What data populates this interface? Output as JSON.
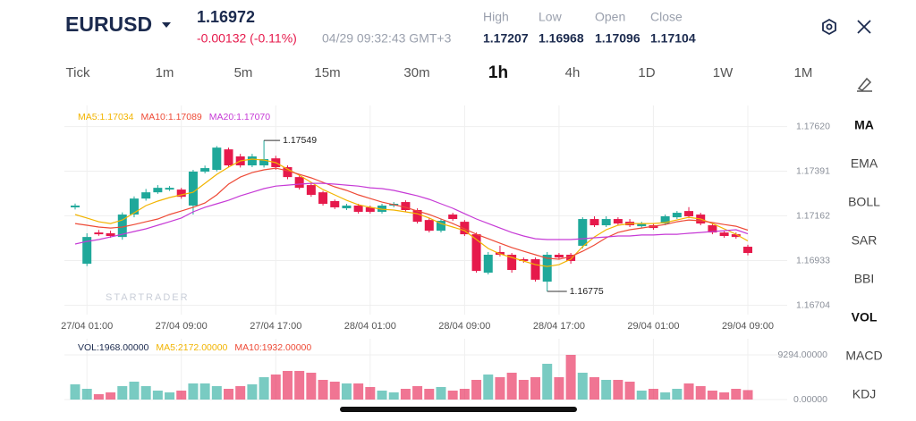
{
  "header": {
    "symbol": "EURUSD",
    "price": "1.16972",
    "change": "-0.00132 (-0.11%)",
    "time": "04/29 09:32:43 GMT+3",
    "stats": [
      {
        "label": "High",
        "value": "1.17207"
      },
      {
        "label": "Low",
        "value": "1.16968"
      },
      {
        "label": "Open",
        "value": "1.17096"
      },
      {
        "label": "Close",
        "value": "1.17104"
      }
    ]
  },
  "timeframes": [
    {
      "label": "Tick"
    },
    {
      "label": "1m"
    },
    {
      "label": "5m"
    },
    {
      "label": "15m"
    },
    {
      "label": "30m"
    },
    {
      "label": "1h",
      "active": true
    },
    {
      "label": "4h"
    },
    {
      "label": "1D"
    },
    {
      "label": "1W"
    },
    {
      "label": "1M"
    }
  ],
  "indicators": [
    {
      "label": "MA",
      "active": true
    },
    {
      "label": "EMA"
    },
    {
      "label": "BOLL"
    },
    {
      "label": "SAR"
    },
    {
      "label": "BBI"
    },
    {
      "label": "VOL",
      "active": true
    },
    {
      "label": "MACD"
    },
    {
      "label": "KDJ"
    }
  ],
  "chart_data": {
    "type": "candlestick",
    "categories": [
      null,
      "27/04 01:00",
      null,
      null,
      null,
      null,
      null,
      null,
      null,
      "27/04 09:00",
      null,
      null,
      null,
      null,
      null,
      null,
      null,
      "27/04 17:00",
      null,
      null,
      null,
      null,
      null,
      null,
      null,
      "28/04 01:00",
      null,
      null,
      null,
      null,
      null,
      null,
      null,
      "28/04 09:00",
      null,
      null,
      null,
      null,
      null,
      null,
      null,
      "28/04 17:00",
      null,
      null,
      null,
      null,
      null,
      null,
      null,
      "29/04 01:00",
      null,
      null,
      null,
      null,
      null,
      null,
      null,
      "29/04 09:00"
    ],
    "ohlc": [
      [
        1.17206,
        1.17225,
        1.17195,
        1.17215
      ],
      [
        1.16917,
        1.17073,
        1.16905,
        1.17054
      ],
      [
        1.17077,
        1.1709,
        1.1706,
        1.17068
      ],
      [
        1.17073,
        1.17086,
        1.1705,
        1.17059
      ],
      [
        1.17054,
        1.1718,
        1.1704,
        1.17169
      ],
      [
        1.17169,
        1.17262,
        1.17155,
        1.17251
      ],
      [
        1.17251,
        1.173,
        1.1724,
        1.17283
      ],
      [
        1.17283,
        1.1732,
        1.17275,
        1.17306
      ],
      [
        1.17297,
        1.17315,
        1.1729,
        1.17306
      ],
      [
        1.17297,
        1.17306,
        1.1725,
        1.1726
      ],
      [
        1.17215,
        1.17398,
        1.17169,
        1.17389
      ],
      [
        1.17389,
        1.1742,
        1.1738,
        1.17407
      ],
      [
        1.17398,
        1.1752,
        1.1739,
        1.17512
      ],
      [
        1.17503,
        1.17512,
        1.17412,
        1.17421
      ],
      [
        1.17467,
        1.1748,
        1.1741,
        1.17421
      ],
      [
        1.17421,
        1.1748,
        1.17412,
        1.17467
      ],
      [
        1.17421,
        1.17549,
        1.1741,
        1.17453
      ],
      [
        1.17457,
        1.1747,
        1.17398,
        1.17412
      ],
      [
        1.17412,
        1.17421,
        1.1735,
        1.17361
      ],
      [
        1.17361,
        1.1737,
        1.17297,
        1.17306
      ],
      [
        1.1732,
        1.1733,
        1.1726,
        1.1727
      ],
      [
        1.17283,
        1.1729,
        1.17215,
        1.17224
      ],
      [
        1.17238,
        1.17246,
        1.17197,
        1.17206
      ],
      [
        1.17201,
        1.17224,
        1.17192,
        1.17215
      ],
      [
        1.17215,
        1.17224,
        1.17174,
        1.17183
      ],
      [
        1.17206,
        1.17215,
        1.17174,
        1.17183
      ],
      [
        1.17183,
        1.17224,
        1.17174,
        1.17215
      ],
      [
        1.17215,
        1.17233,
        1.17206,
        1.17224
      ],
      [
        1.17233,
        1.17242,
        1.17183,
        1.17192
      ],
      [
        1.17192,
        1.17201,
        1.17123,
        1.17132
      ],
      [
        1.17141,
        1.1715,
        1.17077,
        1.17086
      ],
      [
        1.17086,
        1.17146,
        1.17077,
        1.17137
      ],
      [
        1.17169,
        1.17178,
        1.17137,
        1.17146
      ],
      [
        1.17132,
        1.17141,
        1.17059,
        1.17068
      ],
      [
        1.17068,
        1.17077,
        1.16871,
        1.1688
      ],
      [
        1.16871,
        1.16977,
        1.16862,
        1.16963
      ],
      [
        1.16977,
        1.17009,
        1.16954,
        1.16963
      ],
      [
        1.16963,
        1.16972,
        1.16871,
        1.16885
      ],
      [
        1.1694,
        1.16949,
        1.16922,
        1.16931
      ],
      [
        1.1694,
        1.16949,
        1.16825,
        1.16835
      ],
      [
        1.16825,
        1.16977,
        1.16775,
        1.16963
      ],
      [
        1.16963,
        1.16972,
        1.1694,
        1.16949
      ],
      [
        1.16963,
        1.16972,
        1.16917,
        1.16931
      ],
      [
        1.17009,
        1.17155,
        1.16995,
        1.17146
      ],
      [
        1.17146,
        1.1716,
        1.17105,
        1.17114
      ],
      [
        1.17114,
        1.1716,
        1.17105,
        1.17146
      ],
      [
        1.17146,
        1.17155,
        1.17114,
        1.17123
      ],
      [
        1.17132,
        1.17146,
        1.17105,
        1.17114
      ],
      [
        1.17109,
        1.17132,
        1.171,
        1.17123
      ],
      [
        1.17114,
        1.17123,
        1.17091,
        1.171
      ],
      [
        1.17123,
        1.17169,
        1.17114,
        1.1716
      ],
      [
        1.17155,
        1.17187,
        1.17146,
        1.17178
      ],
      [
        1.17187,
        1.17207,
        1.1715,
        1.1716
      ],
      [
        1.17169,
        1.17178,
        1.17114,
        1.17123
      ],
      [
        1.17114,
        1.17123,
        1.17068,
        1.17077
      ],
      [
        1.17077,
        1.17086,
        1.1705,
        1.17059
      ],
      [
        1.17068,
        1.17077,
        1.17045,
        1.17054
      ],
      [
        1.17004,
        1.17014,
        1.1696,
        1.16972
      ]
    ],
    "colors": {
      "up": "#1fa89a",
      "down": "#e6194b"
    },
    "ylim": [
      1.16656,
      1.17728
    ],
    "yticks": [
      {
        "value": 1.1762,
        "label": "1.17620"
      },
      1.17391,
      1.17162,
      1.16933,
      1.16704
    ],
    "grid": true,
    "high_label": 1.17549,
    "low_label": 1.16775,
    "watermark": "STARTRADER",
    "series": [
      {
        "name": "MA5:1.17034",
        "color": "#f2b400",
        "values": [
          1.17169,
          1.17151,
          1.17132,
          1.17123,
          1.17141,
          1.17178,
          1.17215,
          1.17238,
          1.17256,
          1.1727,
          1.17283,
          1.17329,
          1.17375,
          1.17412,
          1.17444,
          1.17453,
          1.17448,
          1.17435,
          1.17402,
          1.1737,
          1.17334,
          1.17297,
          1.1727,
          1.17242,
          1.17219,
          1.17206,
          1.17196,
          1.17192,
          1.17183,
          1.17173,
          1.17151,
          1.17123,
          1.17105,
          1.17086,
          1.17041,
          1.16995,
          1.16967,
          1.16949,
          1.16931,
          1.16912,
          1.16903,
          1.16912,
          1.1694,
          1.17004,
          1.17054,
          1.17091,
          1.17114,
          1.17123,
          1.17123,
          1.17123,
          1.17128,
          1.17141,
          1.17155,
          1.17146,
          1.17123,
          1.17096,
          1.17068,
          1.17034
        ]
      },
      {
        "name": "MA10:1.17089",
        "color": "#ee4a36",
        "values": [
          1.17123,
          1.17114,
          1.17105,
          1.171,
          1.17105,
          1.17118,
          1.17132,
          1.17146,
          1.17169,
          1.17187,
          1.17206,
          1.17228,
          1.1727,
          1.17325,
          1.17361,
          1.17384,
          1.17398,
          1.17407,
          1.17393,
          1.17375,
          1.17357,
          1.17334,
          1.17311,
          1.17293,
          1.1727,
          1.17251,
          1.17233,
          1.17219,
          1.17206,
          1.17187,
          1.17169,
          1.17146,
          1.17123,
          1.17096,
          1.17068,
          1.17045,
          1.17022,
          1.17,
          1.16981,
          1.16963,
          1.16945,
          1.1694,
          1.16954,
          1.16981,
          1.17013,
          1.1705,
          1.17077,
          1.17091,
          1.171,
          1.17109,
          1.17118,
          1.17132,
          1.17141,
          1.17137,
          1.17128,
          1.17118,
          1.17109,
          1.17089
        ]
      },
      {
        "name": "MA20:1.17070",
        "color": "#c63ad6",
        "values": [
          1.17018,
          1.17031,
          1.17041,
          1.17054,
          1.17068,
          1.17082,
          1.17096,
          1.17114,
          1.17132,
          1.17151,
          1.17183,
          1.17206,
          1.17224,
          1.17242,
          1.17265,
          1.17283,
          1.17302,
          1.17315,
          1.1732,
          1.17325,
          1.17329,
          1.17329,
          1.17325,
          1.1732,
          1.17315,
          1.17306,
          1.17302,
          1.17293,
          1.17279,
          1.17265,
          1.17247,
          1.17224,
          1.17201,
          1.17173,
          1.17146,
          1.17123,
          1.171,
          1.17077,
          1.17059,
          1.17045,
          1.17041,
          1.17041,
          1.17041,
          1.17045,
          1.1705,
          1.17054,
          1.17059,
          1.17059,
          1.17064,
          1.17064,
          1.17068,
          1.17068,
          1.17073,
          1.17077,
          1.17082,
          1.17086,
          1.17091,
          1.1707
        ]
      }
    ],
    "volume": {
      "values": [
        3162,
        2232,
        1116,
        1488,
        2790,
        3720,
        2790,
        1860,
        1488,
        1860,
        3348,
        3348,
        2790,
        2232,
        2790,
        3162,
        4650,
        5208,
        5952,
        5952,
        5580,
        4092,
        3720,
        3348,
        3348,
        2604,
        1860,
        1488,
        2232,
        2790,
        2232,
        2604,
        1860,
        2232,
        4092,
        5208,
        4650,
        5580,
        4092,
        4650,
        7440,
        4650,
        9294,
        5580,
        4650,
        4092,
        4092,
        3720,
        1860,
        2232,
        1488,
        2232,
        3348,
        2790,
        1860,
        1488,
        2232,
        1968
      ],
      "legend": [
        {
          "name": "VOL:1968.00000",
          "color": "#1b2a4e"
        },
        {
          "name": "MA5:2172.00000",
          "color": "#f2b400"
        },
        {
          "name": "MA10:1932.00000",
          "color": "#ee4a36"
        }
      ],
      "ylim": [
        0,
        9294
      ],
      "yticks": [
        {
          "value": 0,
          "label": "0.00000"
        },
        {
          "value": 9294,
          "label": "9294.00000"
        }
      ]
    }
  }
}
